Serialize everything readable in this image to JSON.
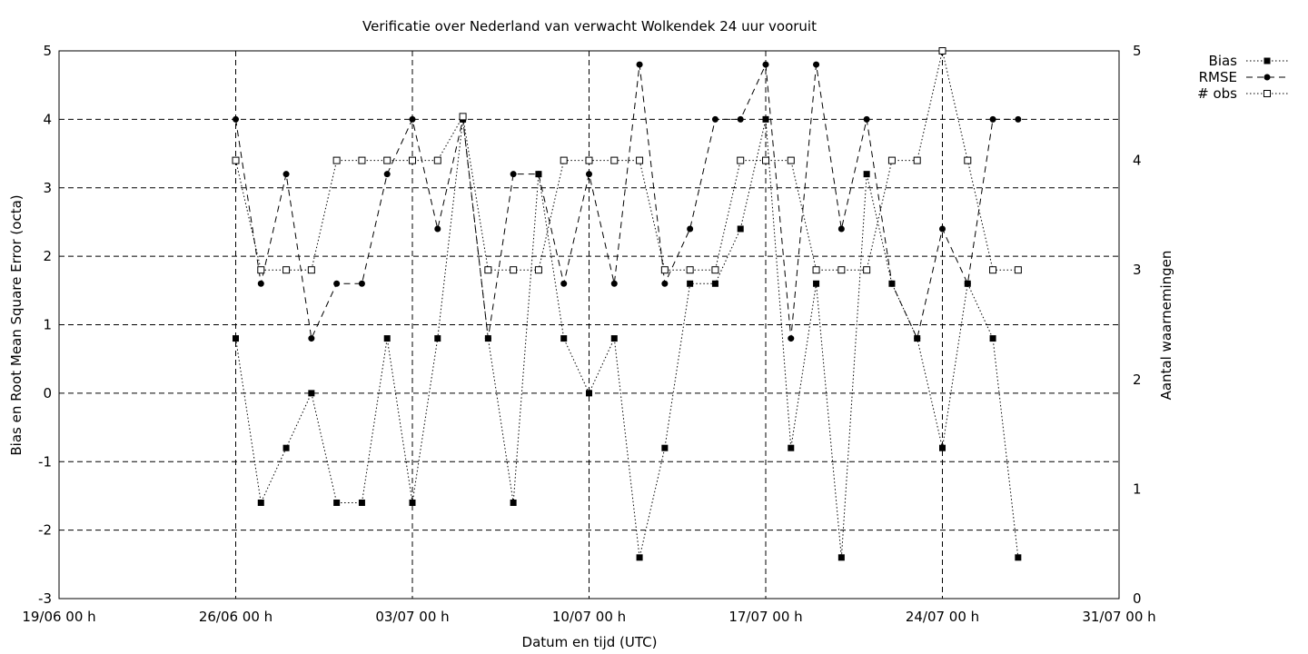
{
  "chart_data": {
    "type": "line",
    "title": "Verificatie over Nederland van verwacht Wolkendek 24 uur vooruit",
    "xlabel": "Datum en tijd (UTC)",
    "ylabel": "Bias en Root Mean Square Error (octa)",
    "y2label": "Aantal waarnemingen",
    "grid": true,
    "legend_position": "outside-top-right",
    "x_ticks": [
      {
        "day": 0,
        "label": "19/06 00 h"
      },
      {
        "day": 7,
        "label": "26/06 00 h"
      },
      {
        "day": 14,
        "label": "03/07 00 h"
      },
      {
        "day": 21,
        "label": "10/07 00 h"
      },
      {
        "day": 28,
        "label": "17/07 00 h"
      },
      {
        "day": 35,
        "label": "24/07 00 h"
      },
      {
        "day": 42,
        "label": "31/07 00 h"
      }
    ],
    "xlim": [
      0,
      42
    ],
    "ylim": [
      -3,
      5
    ],
    "y_ticks": [
      "-3",
      "-2",
      "-1",
      "0",
      "1",
      "2",
      "3",
      "4",
      "5"
    ],
    "y2lim": [
      0,
      5
    ],
    "y2_ticks": [
      "0",
      "1",
      "2",
      "3",
      "4",
      "5"
    ],
    "x": [
      7,
      8,
      9,
      10,
      11,
      12,
      13,
      14,
      15,
      16,
      17,
      18,
      19,
      20,
      21,
      22,
      23,
      24,
      25,
      26,
      27,
      28,
      29,
      30,
      31,
      32,
      33,
      34,
      35,
      36,
      37,
      38
    ],
    "series": [
      {
        "name": "Bias",
        "axis": "y1",
        "line_style": "dotted",
        "marker": "filled-square",
        "values": [
          0.8,
          -1.6,
          -0.8,
          0,
          -1.6,
          -1.6,
          0.8,
          -1.6,
          0.8,
          4,
          0.8,
          -1.6,
          3.2,
          0.8,
          0,
          0.8,
          -2.4,
          -0.8,
          1.6,
          1.6,
          2.4,
          4,
          -0.8,
          1.6,
          -2.4,
          3.2,
          1.6,
          0.8,
          -0.8,
          1.6,
          0.8,
          -2.4
        ]
      },
      {
        "name": "RMSE",
        "axis": "y1",
        "line_style": "dashed",
        "marker": "filled-circle",
        "values": [
          4,
          1.6,
          3.2,
          0.8,
          1.6,
          1.6,
          3.2,
          4,
          2.4,
          4,
          0.8,
          3.2,
          3.2,
          1.6,
          3.2,
          1.6,
          4.8,
          1.6,
          2.4,
          4,
          4,
          4.8,
          0.8,
          4.8,
          2.4,
          4,
          1.6,
          0.8,
          2.4,
          1.6,
          4,
          4
        ]
      },
      {
        "name": "# obs",
        "axis": "y2",
        "line_style": "dotted",
        "marker": "open-square",
        "values": [
          4,
          3,
          3,
          3,
          4,
          4,
          4,
          4,
          4,
          4.4,
          3,
          3,
          3,
          4,
          4,
          4,
          4,
          3,
          3,
          3,
          4,
          4,
          4,
          3,
          3,
          3,
          4,
          4,
          5,
          4,
          3,
          3
        ]
      }
    ],
    "colors": {
      "line": "#000000",
      "grid": "#000000",
      "background": "#ffffff"
    }
  }
}
